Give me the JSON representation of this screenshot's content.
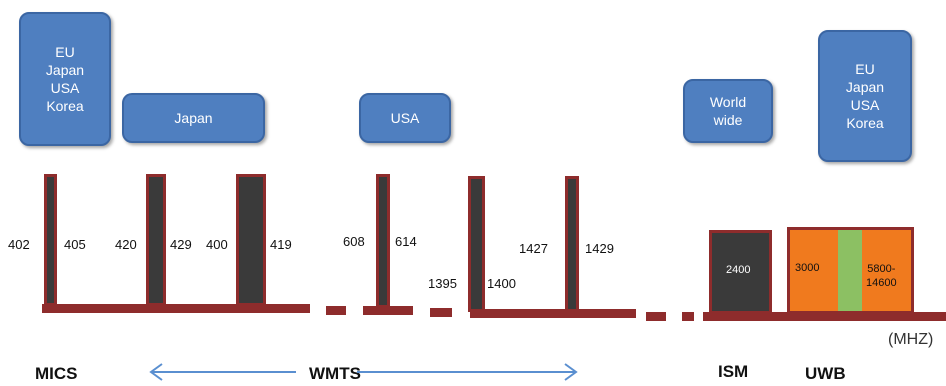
{
  "regions": {
    "mics": [
      "EU",
      "Japan",
      "USA",
      "Korea"
    ],
    "japan": "Japan",
    "usa": "USA",
    "world": [
      "World",
      "wide"
    ],
    "uwb": [
      "EU",
      "Japan",
      "USA",
      "Korea"
    ]
  },
  "frequencies": {
    "f402": "402",
    "f405": "405",
    "f420": "420",
    "f429": "429",
    "f400": "400",
    "f419": "419",
    "f608": "608",
    "f614": "614",
    "f1395": "1395",
    "f1400": "1400",
    "f1427": "1427",
    "f1429": "1429",
    "ism": "2400",
    "uwb_low": "3000",
    "uwb_high": [
      "5800-",
      "14600"
    ]
  },
  "bands": {
    "mics": "MICS",
    "wmts": "WMTS",
    "ism": "ISM",
    "uwb": "UWB"
  },
  "unit": "(MHZ)",
  "colors": {
    "region_fill": "#4f7fc0",
    "bar_fill": "#3a3a3a",
    "bar_border": "#8e2c2c",
    "uwb_fill": "#f07a1e",
    "uwb_gap": "#8cc063",
    "arrow": "#5a8fd0"
  }
}
